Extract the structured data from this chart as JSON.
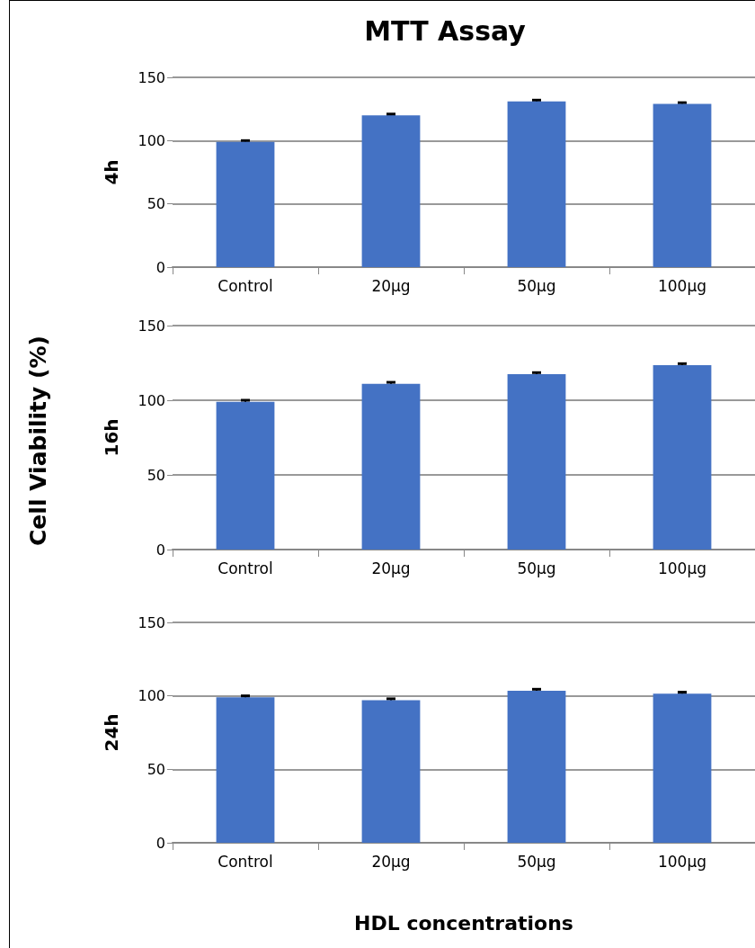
{
  "chart_data": [
    {
      "type": "bar",
      "title": "MTT Assay",
      "ylabel": "4h",
      "annotations": [
        "Cell Viability (%)"
      ],
      "categories": [
        "Control",
        "20µg",
        "50µg",
        "100µg"
      ],
      "color": "#4472c4",
      "values": [
        99,
        120,
        131,
        129
      ],
      "errors": [
        1,
        1,
        1,
        1
      ],
      "ylim": [
        0,
        150
      ],
      "yticks": [
        0,
        50,
        100,
        150
      ],
      "grid": "y"
    },
    {
      "type": "bar",
      "ylabel": "16h",
      "categories": [
        "Control",
        "20µg",
        "50µg",
        "100µg"
      ],
      "color": "#4472c4",
      "values": [
        99,
        111,
        117.5,
        123.5
      ],
      "errors": [
        1,
        1,
        1,
        1
      ],
      "ylim": [
        0,
        150
      ],
      "yticks": [
        0,
        50,
        100,
        150
      ],
      "grid": "y"
    },
    {
      "type": "bar",
      "ylabel": "24h",
      "xlabel": "HDL concentrations",
      "categories": [
        "Control",
        "20µg",
        "50µg",
        "100µg"
      ],
      "color": "#4472c4",
      "values": [
        99,
        97,
        103.5,
        101.5
      ],
      "errors": [
        1,
        1,
        1,
        1
      ],
      "ylim": [
        0,
        150
      ],
      "yticks": [
        0,
        50,
        100,
        150
      ],
      "grid": "y"
    }
  ]
}
